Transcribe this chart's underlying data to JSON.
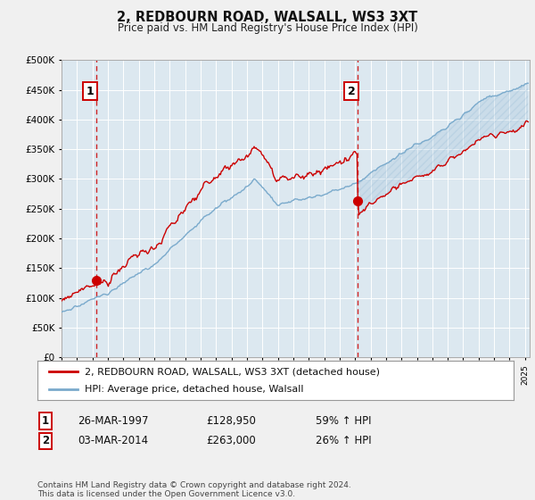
{
  "title": "2, REDBOURN ROAD, WALSALL, WS3 3XT",
  "subtitle": "Price paid vs. HM Land Registry's House Price Index (HPI)",
  "legend_line1": "2, REDBOURN ROAD, WALSALL, WS3 3XT (detached house)",
  "legend_line2": "HPI: Average price, detached house, Walsall",
  "footer": "Contains HM Land Registry data © Crown copyright and database right 2024.\nThis data is licensed under the Open Government Licence v3.0.",
  "sale1_date": "26-MAR-1997",
  "sale1_price": 128950,
  "sale1_label": "59% ↑ HPI",
  "sale2_date": "03-MAR-2014",
  "sale2_price": 263000,
  "sale2_label": "26% ↑ HPI",
  "sale1_year": 1997.23,
  "sale2_year": 2014.17,
  "hpi_color": "#7aaacc",
  "sale_color": "#cc0000",
  "plot_bg": "#dce8f0",
  "grid_color": "#ffffff",
  "fig_bg": "#f0f0f0",
  "ylim": [
    0,
    500000
  ],
  "xlim": [
    1995,
    2025.3
  ],
  "yticks": [
    0,
    50000,
    100000,
    150000,
    200000,
    250000,
    300000,
    350000,
    400000,
    450000,
    500000
  ]
}
